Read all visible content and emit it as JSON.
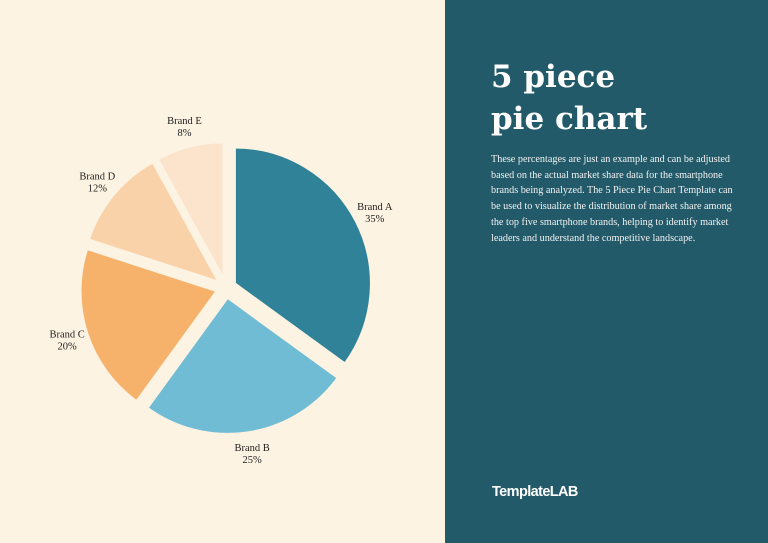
{
  "panel": {
    "title_line1": "5 piece",
    "title_line2": "pie chart",
    "description": "These percentages are just an example and can be adjusted based on the actual market share data for the smartphone brands being analyzed. The 5 Piece Pie Chart Template can be used to visualize the distribution of market share among the top five smartphone brands, helping to identify market leaders and understand the competitive landscape.",
    "brand": "TemplateLAB"
  },
  "colors": {
    "page_background": "#fdf3e2",
    "panel_background": "#235a69",
    "panel_text": "#ffffff"
  },
  "chart_data": {
    "type": "pie",
    "title": "",
    "exploded": true,
    "start_angle": "12 o'clock",
    "direction": "clockwise",
    "slices": [
      {
        "label": "Brand A",
        "value": 35,
        "value_label": "35%",
        "color": "#2f8297"
      },
      {
        "label": "Brand B",
        "value": 25,
        "value_label": "25%",
        "color": "#6fbcd4"
      },
      {
        "label": "Brand C",
        "value": 20,
        "value_label": "20%",
        "color": "#f6b26b"
      },
      {
        "label": "Brand D",
        "value": 12,
        "value_label": "12%",
        "color": "#f9d2aa"
      },
      {
        "label": "Brand E",
        "value": 8,
        "value_label": "8%",
        "color": "#fce3cc"
      }
    ]
  }
}
